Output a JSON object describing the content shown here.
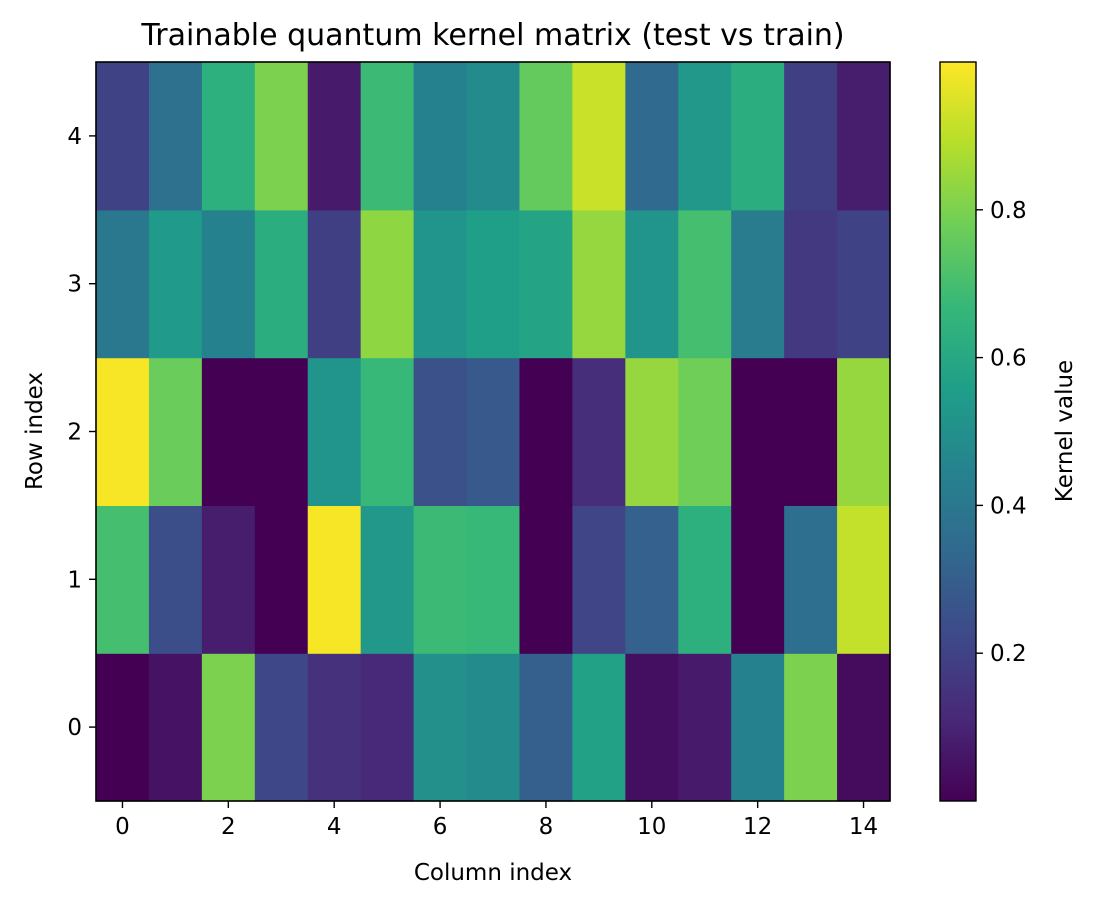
{
  "chart_data": {
    "type": "heatmap",
    "title": "Trainable quantum kernel matrix (test vs train)",
    "xlabel": "Column index",
    "ylabel": "Row index",
    "colorbar_label": "Kernel value",
    "colormap": "viridis",
    "vmin": 0.0,
    "vmax": 1.0,
    "xlim": [
      -0.5,
      14.5
    ],
    "ylim": [
      -0.5,
      4.5
    ],
    "x_ticks": [
      0,
      2,
      4,
      6,
      8,
      10,
      12,
      14
    ],
    "x_tick_labels": [
      "0",
      "2",
      "4",
      "6",
      "8",
      "10",
      "12",
      "14"
    ],
    "y_ticks": [
      0,
      1,
      2,
      3,
      4
    ],
    "y_tick_labels": [
      "0",
      "1",
      "2",
      "3",
      "4"
    ],
    "colorbar_ticks": [
      0.2,
      0.4,
      0.6,
      0.8
    ],
    "colorbar_tick_labels": [
      "0.2",
      "0.4",
      "0.6",
      "0.8"
    ],
    "grid": false,
    "rows": [
      0,
      1,
      2,
      3,
      4
    ],
    "columns": [
      0,
      1,
      2,
      3,
      4,
      5,
      6,
      7,
      8,
      9,
      10,
      11,
      12,
      13,
      14
    ],
    "values": [
      [
        0.0,
        0.05,
        0.8,
        0.22,
        0.14,
        0.11,
        0.5,
        0.48,
        0.3,
        0.57,
        0.04,
        0.07,
        0.44,
        0.8,
        0.03
      ],
      [
        0.7,
        0.24,
        0.08,
        0.0,
        0.99,
        0.53,
        0.68,
        0.67,
        0.0,
        0.21,
        0.31,
        0.63,
        0.0,
        0.36,
        0.91
      ],
      [
        0.99,
        0.77,
        0.0,
        0.0,
        0.52,
        0.67,
        0.25,
        0.28,
        0.0,
        0.13,
        0.84,
        0.78,
        0.0,
        0.0,
        0.84
      ],
      [
        0.4,
        0.54,
        0.44,
        0.62,
        0.19,
        0.83,
        0.52,
        0.56,
        0.58,
        0.84,
        0.52,
        0.7,
        0.42,
        0.17,
        0.2
      ],
      [
        0.2,
        0.37,
        0.63,
        0.8,
        0.07,
        0.68,
        0.44,
        0.48,
        0.76,
        0.92,
        0.34,
        0.53,
        0.62,
        0.19,
        0.08
      ]
    ]
  }
}
